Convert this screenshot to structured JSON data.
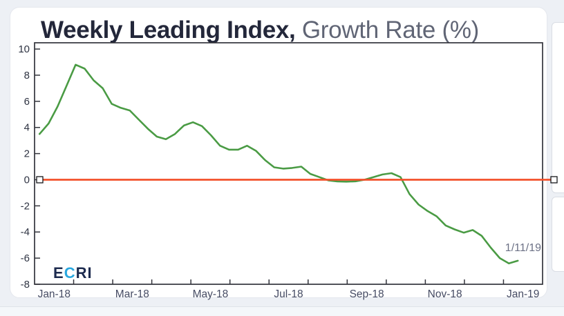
{
  "window": {
    "background": "#edf0f5",
    "bottom_strip_background": "#f4f7fa"
  },
  "card": {
    "background": "#ffffff",
    "border": "#e4e7ed"
  },
  "title": {
    "bold": "Weekly Leading Index,",
    "regular": " Growth Rate (%)"
  },
  "logo": {
    "part1": "E",
    "part2": "C",
    "part3": "RI",
    "navy": "#1d2b4f",
    "blue": "#29a8e0"
  },
  "annotation": {
    "label": "1/11/19"
  },
  "side_panels": {
    "background": "#ffffff",
    "border": "#d9dde4"
  },
  "selection": {
    "handle_fill": "#ffffff",
    "handle_border": "#15161a"
  },
  "chart_data": {
    "type": "line",
    "title": "Weekly Leading Index, Growth Rate (%)",
    "frequency": "weekly",
    "grid": false,
    "legend": "none",
    "x_tick_labels": [
      "Jan-18",
      "Mar-18",
      "May-18",
      "Jul-18",
      "Sep-18",
      "Nov-18",
      "Jan-19"
    ],
    "x_axis_months_total": 13,
    "y_ticks": [
      10,
      8,
      6,
      4,
      2,
      0,
      -2,
      -4,
      -6,
      -8
    ],
    "y_tick_labels": [
      "10",
      "8",
      "6",
      "4",
      "2",
      "0",
      "-2",
      "-4",
      "-6",
      "-8"
    ],
    "ylim": [
      -8,
      10.48
    ],
    "axis_color": "#32333b",
    "tick_label_color": "#2e3342",
    "month_label_color": "#454b63",
    "zero_line": {
      "value": 0,
      "color": "#f3502a"
    },
    "last_point_label": "1/11/19",
    "series": [
      {
        "name": "Weekly Leading Index growth rate (%)",
        "color": "#4a9b44",
        "values": [
          3.5,
          4.3,
          5.6,
          7.2,
          8.8,
          8.5,
          7.6,
          7.0,
          5.8,
          5.5,
          5.3,
          4.6,
          3.9,
          3.3,
          3.1,
          3.5,
          4.15,
          4.4,
          4.1,
          3.4,
          2.6,
          2.3,
          2.3,
          2.6,
          2.2,
          1.5,
          0.95,
          0.85,
          0.9,
          1.0,
          0.45,
          0.2,
          -0.05,
          -0.13,
          -0.15,
          -0.12,
          0.0,
          0.2,
          0.4,
          0.5,
          0.2,
          -1.1,
          -1.9,
          -2.4,
          -2.8,
          -3.5,
          -3.8,
          -4.05,
          -3.85,
          -4.3,
          -5.2,
          -6.0,
          -6.4,
          -6.2
        ]
      }
    ]
  }
}
